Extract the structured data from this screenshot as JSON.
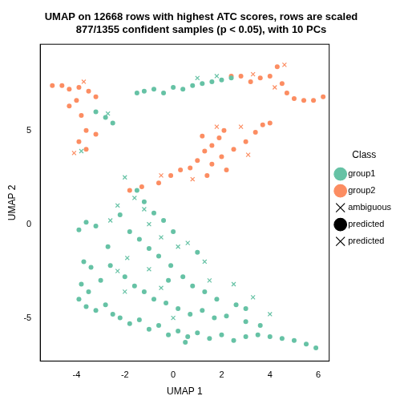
{
  "chart_data": {
    "type": "scatter",
    "title": "UMAP on 12668 rows with highest ATC scores, rows are scaled",
    "subtitle": "877/1355 confident samples (p < 0.05), with 10 PCs",
    "x_label": "UMAP 1",
    "y_label": "UMAP 2",
    "legend_title": "Class",
    "legend": "right",
    "grid": false,
    "xlim": [
      -5.5,
      6.45
    ],
    "xticks": [
      -4,
      -2,
      0,
      2,
      4,
      6
    ],
    "ylim": [
      -7.3,
      9.6
    ],
    "yticks": [
      -5,
      0,
      5
    ],
    "series": [
      {
        "name": "group1",
        "color": "#66C2A5",
        "marker": "circle",
        "x": [
          -1.5,
          -1.2,
          -0.8,
          -0.4,
          0,
          0.4,
          0.8,
          1.2,
          1.6,
          2.0,
          2.4,
          -3.2,
          -2.8,
          -2.5,
          -3.6,
          -3.9,
          -3.7,
          -3.4,
          -3.8,
          -3.5,
          -3.9,
          -3.6,
          -3.2,
          -2.8,
          -2.5,
          -2.2,
          -1.8,
          -1.4,
          -1.0,
          -0.6,
          -0.2,
          0.2,
          0.6,
          1.0,
          1.5,
          2.0,
          2.5,
          3.0,
          3.5,
          4.0,
          4.5,
          5.0,
          5.5,
          5.9,
          -2.6,
          -2.0,
          -1.6,
          -1.2,
          -0.8,
          -0.3,
          0.2,
          0.7,
          1.2,
          1.7,
          2.2,
          2.6,
          3.0,
          3.6,
          -1.8,
          -1.4,
          -1.0,
          -0.6,
          -0.1,
          0.4,
          0.8,
          1.3,
          1.8,
          -1.5,
          -1.2,
          -0.8,
          -0.4,
          0,
          -2.2,
          -3.2,
          -2.7,
          -3.0,
          1.0,
          -0.2,
          0.5,
          3.0
        ],
        "values": [
          7.0,
          7.1,
          7.2,
          7.0,
          7.3,
          7.2,
          7.4,
          7.5,
          7.6,
          7.7,
          7.8,
          6.0,
          5.7,
          5.4,
          0.1,
          -0.3,
          -2.0,
          -2.3,
          -3.2,
          -3.6,
          -4.0,
          -4.4,
          -4.6,
          -4.3,
          -4.8,
          -5.0,
          -5.3,
          -5.1,
          -5.6,
          -5.4,
          -5.9,
          -5.7,
          -6.0,
          -5.8,
          -6.1,
          -5.9,
          -6.2,
          -6.0,
          -5.9,
          -6.0,
          -6.1,
          -6.2,
          -6.4,
          -6.6,
          -2.2,
          -2.8,
          -3.3,
          -3.6,
          -4.0,
          -4.2,
          -4.5,
          -4.8,
          -4.6,
          -5.0,
          -4.9,
          -4.3,
          -5.2,
          -5.4,
          -0.4,
          -0.8,
          -1.3,
          -1.7,
          -2.2,
          -2.8,
          -3.3,
          -3.6,
          -4.0,
          1.8,
          1.2,
          0.6,
          0.2,
          -0.4,
          0.5,
          -0.1,
          -1.2,
          -3.0,
          -1.5,
          -3.0,
          -6.3,
          -4.5
        ]
      },
      {
        "name": "group2",
        "color": "#FC8D62",
        "marker": "circle",
        "x": [
          -5.0,
          -4.6,
          -4.3,
          -3.9,
          -3.5,
          -3.2,
          -4.0,
          -4.3,
          -3.8,
          -3.6,
          -3.9,
          -3.6,
          -3.2,
          2.8,
          3.2,
          3.6,
          4.0,
          4.3,
          4.5,
          4.7,
          5.0,
          5.4,
          5.8,
          6.2,
          2.4,
          -1.8,
          -1.3,
          -0.6,
          -0.1,
          0.3,
          0.7,
          1.0,
          1.3,
          1.6,
          1.9,
          2.1,
          1.2,
          1.6,
          2.0,
          2.5,
          3.0,
          3.4,
          3.7,
          4.0,
          1.4,
          2.2
        ],
        "values": [
          7.4,
          7.4,
          7.2,
          7.3,
          7.1,
          6.8,
          6.6,
          6.3,
          5.8,
          5.0,
          4.4,
          4.0,
          4.8,
          7.9,
          7.6,
          7.8,
          7.9,
          8.4,
          7.5,
          7.0,
          6.7,
          6.6,
          6.6,
          6.8,
          7.9,
          1.8,
          2.0,
          2.2,
          2.6,
          2.9,
          3.0,
          3.4,
          3.9,
          4.2,
          4.6,
          5.0,
          4.7,
          3.2,
          3.6,
          4.0,
          4.4,
          4.9,
          5.3,
          5.4,
          2.6,
          2.9
        ]
      },
      {
        "name": "ambiguous",
        "color": "#000000",
        "marker": "cross",
        "x": [],
        "values": []
      },
      {
        "name": "predicted",
        "color": "#000000",
        "marker": "dot",
        "x": [],
        "values": []
      },
      {
        "name": "predicted",
        "color": "#000000",
        "marker": "cross",
        "x": [
          -2.0,
          -1.6,
          -2.3,
          -1.2,
          -2.6,
          -1.0,
          -0.5,
          0.2,
          0.6,
          1.3,
          -1.9,
          -2.3,
          -1.0,
          -0.5,
          1.5,
          2.5,
          3.3,
          4.0,
          -2.0,
          0.0,
          1.0,
          1.8,
          -2.7,
          -3.8,
          4.6,
          4.2,
          3.3,
          -4.1,
          -3.7,
          0.8,
          -0.5,
          2.8,
          1.8,
          3.1
        ],
        "values": [
          2.5,
          1.4,
          1.0,
          0.8,
          0.2,
          0.0,
          -0.7,
          -1.2,
          -1.0,
          -2.0,
          -1.8,
          -2.5,
          -2.4,
          -3.4,
          -3.0,
          -3.2,
          -3.9,
          -4.8,
          -3.6,
          -5.0,
          7.8,
          7.9,
          5.9,
          3.9,
          8.5,
          7.3,
          8.0,
          3.8,
          7.6,
          2.4,
          2.6,
          5.2,
          5.2,
          3.7
        ],
        "colors": [
          "#66C2A5",
          "#66C2A5",
          "#66C2A5",
          "#66C2A5",
          "#66C2A5",
          "#66C2A5",
          "#66C2A5",
          "#66C2A5",
          "#66C2A5",
          "#66C2A5",
          "#66C2A5",
          "#66C2A5",
          "#66C2A5",
          "#66C2A5",
          "#66C2A5",
          "#66C2A5",
          "#66C2A5",
          "#66C2A5",
          "#66C2A5",
          "#66C2A5",
          "#66C2A5",
          "#66C2A5",
          "#66C2A5",
          "#66C2A5",
          "#FC8D62",
          "#FC8D62",
          "#FC8D62",
          "#FC8D62",
          "#FC8D62",
          "#FC8D62",
          "#FC8D62",
          "#FC8D62",
          "#FC8D62",
          "#FC8D62"
        ]
      }
    ]
  }
}
